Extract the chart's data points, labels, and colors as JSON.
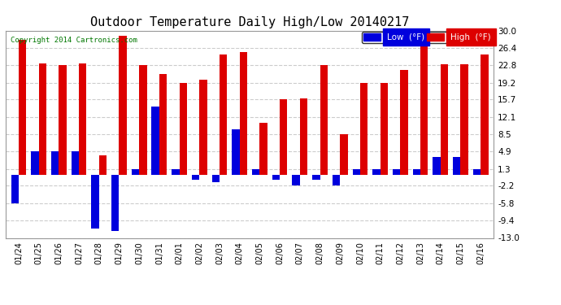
{
  "title": "Outdoor Temperature Daily High/Low 20140217",
  "copyright": "Copyright 2014 Cartronics.com",
  "categories": [
    "01/24",
    "01/25",
    "01/26",
    "01/27",
    "01/28",
    "01/29",
    "01/30",
    "01/31",
    "02/01",
    "02/02",
    "02/03",
    "02/04",
    "02/05",
    "02/06",
    "02/07",
    "02/08",
    "02/09",
    "02/10",
    "02/11",
    "02/12",
    "02/13",
    "02/14",
    "02/15",
    "02/16"
  ],
  "low_values": [
    -5.8,
    4.9,
    4.9,
    4.9,
    -11.0,
    -11.5,
    1.3,
    14.2,
    1.3,
    -1.0,
    -1.5,
    9.5,
    1.3,
    -1.0,
    -2.2,
    -1.0,
    -2.2,
    1.3,
    1.3,
    1.3,
    1.3,
    3.8,
    3.8,
    1.3
  ],
  "high_values": [
    28.0,
    23.2,
    22.8,
    23.2,
    4.1,
    28.9,
    22.8,
    21.0,
    19.2,
    19.8,
    25.0,
    25.6,
    10.9,
    15.7,
    16.0,
    22.8,
    8.5,
    19.2,
    19.2,
    21.8,
    28.9,
    23.0,
    23.0,
    25.0
  ],
  "low_color": "#0000dd",
  "high_color": "#dd0000",
  "ylim": [
    -13.0,
    30.0
  ],
  "yticks": [
    -13.0,
    -9.4,
    -5.8,
    -2.2,
    1.3,
    4.9,
    8.5,
    12.1,
    15.7,
    19.2,
    22.8,
    26.4,
    30.0
  ],
  "grid_color": "#cccccc",
  "bg_color": "#ffffff",
  "bar_width": 0.38,
  "title_fontsize": 11,
  "legend_low_label": "Low  (°F)",
  "legend_high_label": "High  (°F)"
}
